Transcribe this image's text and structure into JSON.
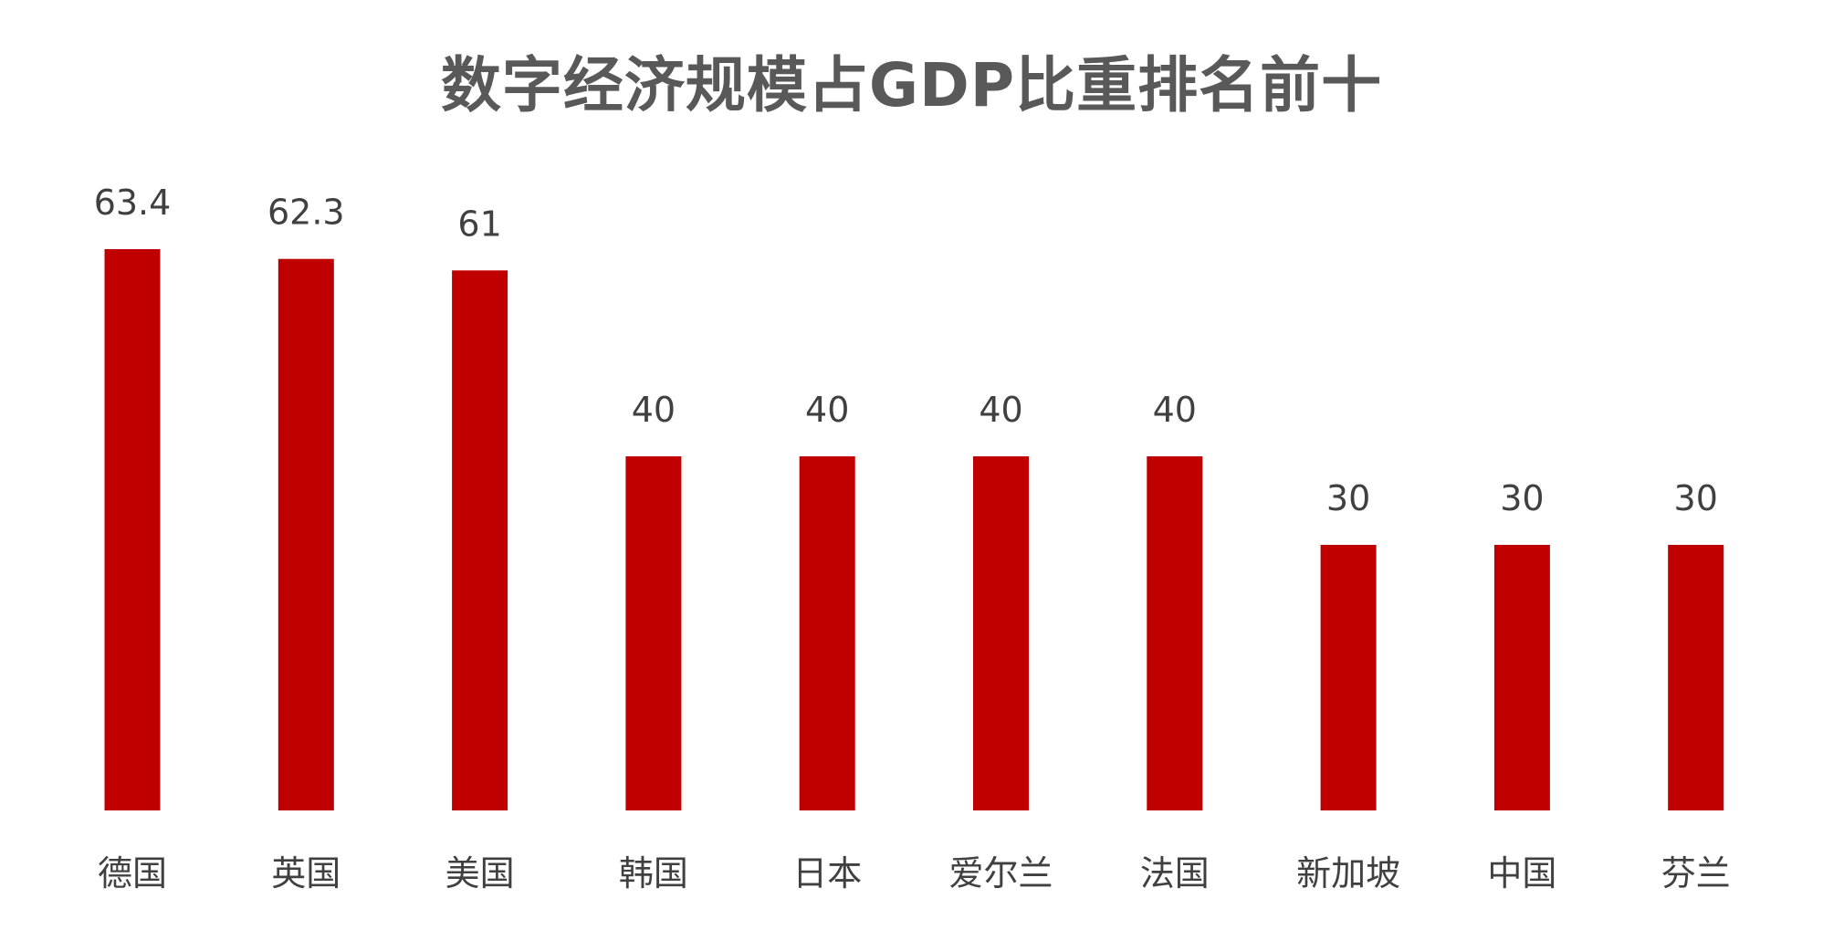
{
  "chart_data": {
    "type": "bar",
    "title": "数字经济规模占GDP比重排名前十",
    "xlabel": "",
    "ylabel": "",
    "categories": [
      "德国",
      "英国",
      "美国",
      "韩国",
      "日本",
      "爱尔兰",
      "法国",
      "新加坡",
      "中国",
      "芬兰"
    ],
    "series": [
      {
        "values": [
          63.4,
          62.3,
          61,
          40,
          40,
          40,
          40,
          30,
          30,
          30
        ],
        "color": "#C00000"
      }
    ],
    "data_labels": [
      "63.4",
      "62.3",
      "61",
      "40",
      "40",
      "40",
      "40",
      "30",
      "30",
      "30"
    ],
    "ylim": [
      0,
      63.4
    ],
    "grid": false,
    "legend": "none"
  }
}
